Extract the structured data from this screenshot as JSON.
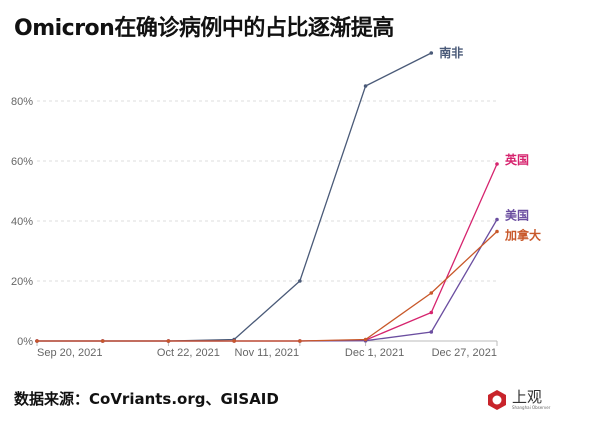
{
  "title": "Omicron在确诊病例中的占比逐渐提高",
  "source": "数据来源：CoVriants.org、GISAID",
  "logo": {
    "name": "上观",
    "subtitle": "Shanghai Observer"
  },
  "chart_data": {
    "type": "line",
    "title": "Omicron在确诊病例中的占比逐渐提高",
    "xlabel": "",
    "ylabel": "",
    "x_count": 8,
    "x_tick_labels": [
      {
        "index": 0,
        "label": "Sep 20, 2021"
      },
      {
        "index": 2,
        "label": "Oct 22, 2021"
      },
      {
        "index": 4,
        "label": "Nov 11, 2021"
      },
      {
        "index": 5,
        "label": "Dec 1, 2021"
      },
      {
        "index": 7,
        "label": "Dec 27, 2021"
      }
    ],
    "y_ticks": [
      "0%",
      "20%",
      "40%",
      "60%",
      "80%"
    ],
    "y_tick_values": [
      0,
      20,
      40,
      60,
      80
    ],
    "ylim": [
      0,
      100
    ],
    "grid": true,
    "series": [
      {
        "name": "南非",
        "color": "#4a5a78",
        "values": [
          0,
          0,
          0,
          0.5,
          20,
          85,
          96
        ]
      },
      {
        "name": "英国",
        "color": "#d6246e",
        "values": [
          0,
          0,
          0,
          0,
          0,
          0.3,
          9.5,
          59
        ]
      },
      {
        "name": "美国",
        "color": "#6b4ea0",
        "values": [
          0,
          0,
          0,
          0,
          0,
          0.1,
          3,
          40.5
        ]
      },
      {
        "name": "加拿大",
        "color": "#c8582a",
        "values": [
          0,
          0,
          0,
          0,
          0,
          0.5,
          16,
          36.5
        ]
      }
    ]
  }
}
